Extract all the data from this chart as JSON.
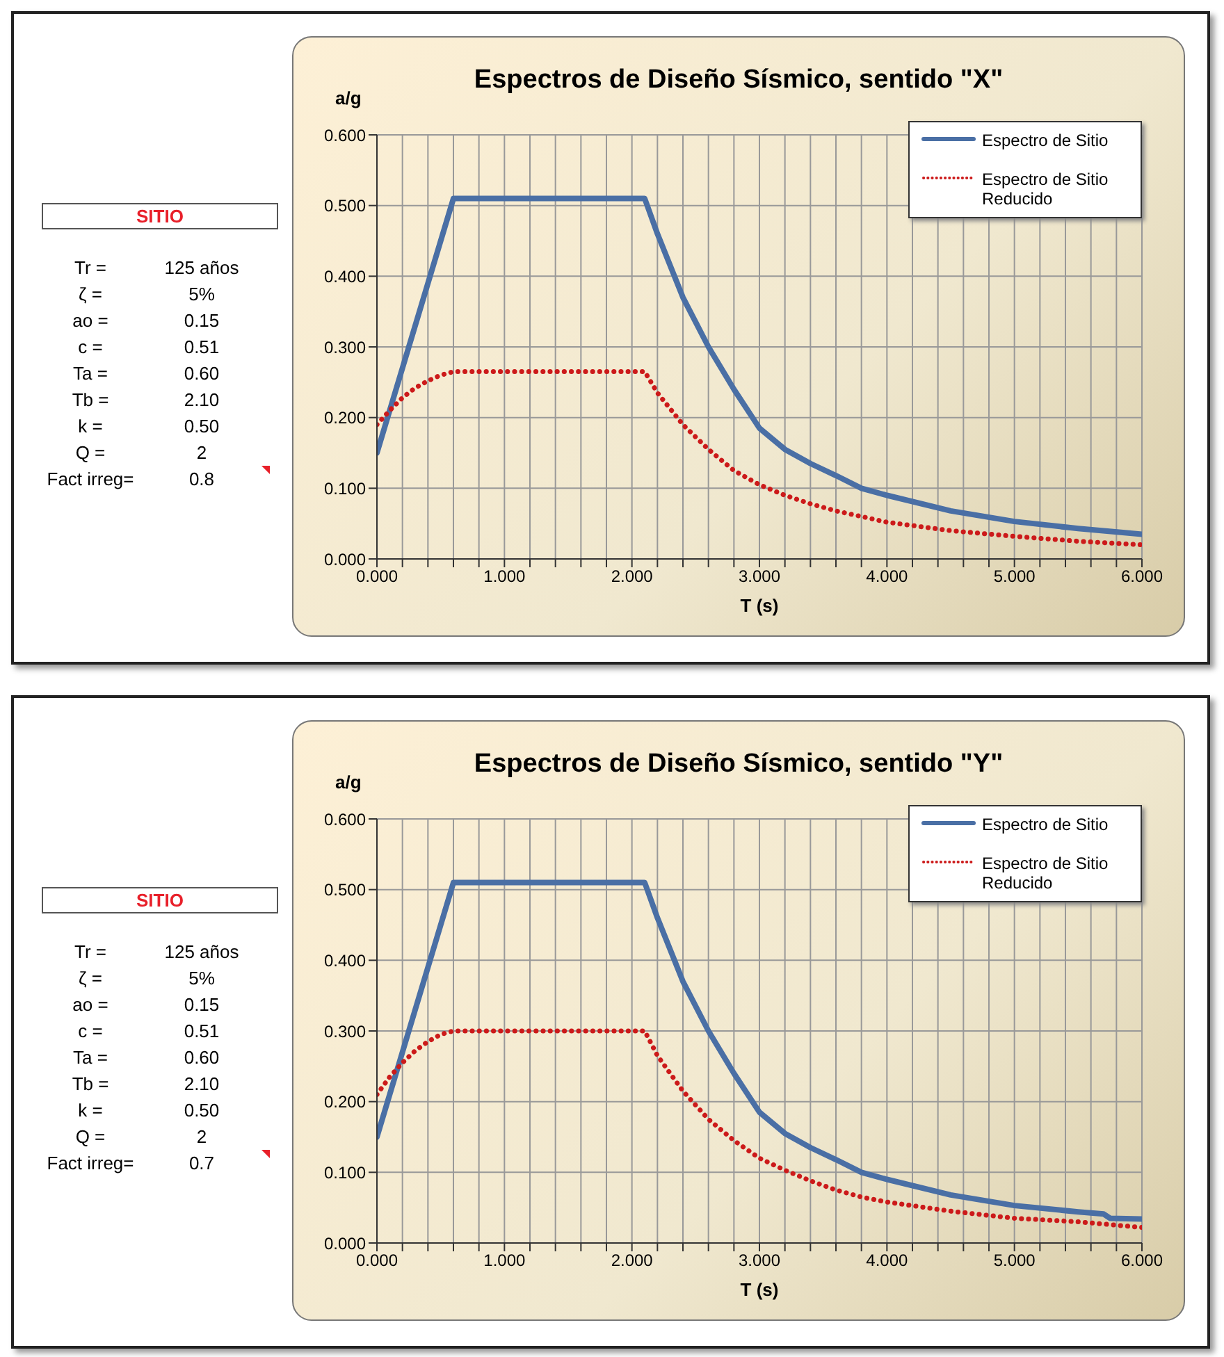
{
  "chart_data": [
    {
      "type": "other",
      "title": "SITIO",
      "annotations": [
        "Tr =",
        "125 años",
        "ζ =",
        "5%",
        "ao =",
        "0.15",
        "c =",
        "0.51",
        "Ta =",
        "0.60",
        "Tb =",
        "2.10",
        "k =",
        "0.50",
        "Q =",
        "2",
        "Fact irreg=",
        "0.8"
      ]
    },
    {
      "type": "line",
      "title": "Espectros de Diseño Sísmico, sentido \"X\"",
      "xlabel": "T (s)",
      "ylabel": "a/g",
      "xlim": [
        0,
        6
      ],
      "ylim": [
        0,
        0.6
      ],
      "xticks": [
        {
          "value": 0,
          "label": "0.000"
        },
        {
          "value": 0.2,
          "label": null
        },
        {
          "value": 0.4,
          "label": null
        },
        {
          "value": 0.6,
          "label": null
        },
        {
          "value": 0.8,
          "label": null
        },
        {
          "value": 1,
          "label": "1.000"
        },
        {
          "value": 1.2,
          "label": null
        },
        {
          "value": 1.4,
          "label": null
        },
        {
          "value": 1.6,
          "label": null
        },
        {
          "value": 1.8,
          "label": null
        },
        {
          "value": 2,
          "label": "2.000"
        },
        {
          "value": 2.2,
          "label": null
        },
        {
          "value": 2.4,
          "label": null
        },
        {
          "value": 2.6,
          "label": null
        },
        {
          "value": 2.8,
          "label": null
        },
        {
          "value": 3,
          "label": "3.000"
        },
        {
          "value": 3.2,
          "label": null
        },
        {
          "value": 3.4,
          "label": null
        },
        {
          "value": 3.6,
          "label": null
        },
        {
          "value": 3.8,
          "label": null
        },
        {
          "value": 4,
          "label": "4.000"
        },
        {
          "value": 4.2,
          "label": null
        },
        {
          "value": 4.4,
          "label": null
        },
        {
          "value": 4.6,
          "label": null
        },
        {
          "value": 4.8,
          "label": null
        },
        {
          "value": 5,
          "label": "5.000"
        },
        {
          "value": 5.2,
          "label": null
        },
        {
          "value": 5.4,
          "label": null
        },
        {
          "value": 5.6,
          "label": null
        },
        {
          "value": 5.8,
          "label": null
        },
        {
          "value": 6,
          "label": "6.000"
        }
      ],
      "yticks": [
        {
          "value": 0,
          "label": "0.000"
        },
        {
          "value": 0.1,
          "label": "0.100"
        },
        {
          "value": 0.2,
          "label": "0.200"
        },
        {
          "value": 0.3,
          "label": "0.300"
        },
        {
          "value": 0.4,
          "label": "0.400"
        },
        {
          "value": 0.5,
          "label": "0.500"
        },
        {
          "value": 0.6,
          "label": "0.600"
        }
      ],
      "grid": true,
      "legend": "top right",
      "marker": "none",
      "series": [
        {
          "name": "Espectro de Sitio",
          "color": "#4a6fa5",
          "line_style": "solid",
          "x": [
            0,
            0.6,
            2.1,
            2.2,
            2.4,
            2.6,
            2.8,
            3.0,
            3.2,
            3.4,
            3.6,
            3.8,
            4.0,
            4.5,
            5.0,
            5.5,
            6.0
          ],
          "values": [
            0.15,
            0.51,
            0.51,
            0.46,
            0.37,
            0.3,
            0.24,
            0.185,
            0.155,
            0.135,
            0.118,
            0.1,
            0.09,
            0.068,
            0.053,
            0.043,
            0.035
          ]
        },
        {
          "name": "Espectro de Sitio Reducido",
          "color": "#cc1a1a",
          "line_style": "dotted",
          "x": [
            0,
            0.1,
            0.2,
            0.3,
            0.4,
            0.5,
            0.6,
            2.1,
            2.2,
            2.4,
            2.6,
            2.8,
            3.0,
            3.2,
            3.4,
            3.6,
            3.8,
            4.0,
            4.5,
            5.0,
            5.5,
            6.0
          ],
          "values": [
            0.19,
            0.21,
            0.228,
            0.242,
            0.252,
            0.26,
            0.265,
            0.265,
            0.235,
            0.19,
            0.155,
            0.125,
            0.105,
            0.09,
            0.078,
            0.068,
            0.06,
            0.052,
            0.04,
            0.032,
            0.025,
            0.02
          ]
        }
      ]
    },
    {
      "type": "other",
      "title": "SITIO",
      "annotations": [
        "Tr =",
        "125 años",
        "ζ =",
        "5%",
        "ao =",
        "0.15",
        "c =",
        "0.51",
        "Ta =",
        "0.60",
        "Tb =",
        "2.10",
        "k =",
        "0.50",
        "Q =",
        "2",
        "Fact irreg=",
        "0.7"
      ]
    },
    {
      "type": "line",
      "title": "Espectros de Diseño Sísmico, sentido \"Y\"",
      "xlabel": "T (s)",
      "ylabel": "a/g",
      "xlim": [
        0,
        6
      ],
      "ylim": [
        0,
        0.6
      ],
      "xticks": [
        {
          "value": 0,
          "label": "0.000"
        },
        {
          "value": 0.2,
          "label": null
        },
        {
          "value": 0.4,
          "label": null
        },
        {
          "value": 0.6,
          "label": null
        },
        {
          "value": 0.8,
          "label": null
        },
        {
          "value": 1,
          "label": "1.000"
        },
        {
          "value": 1.2,
          "label": null
        },
        {
          "value": 1.4,
          "label": null
        },
        {
          "value": 1.6,
          "label": null
        },
        {
          "value": 1.8,
          "label": null
        },
        {
          "value": 2,
          "label": "2.000"
        },
        {
          "value": 2.2,
          "label": null
        },
        {
          "value": 2.4,
          "label": null
        },
        {
          "value": 2.6,
          "label": null
        },
        {
          "value": 2.8,
          "label": null
        },
        {
          "value": 3,
          "label": "3.000"
        },
        {
          "value": 3.2,
          "label": null
        },
        {
          "value": 3.4,
          "label": null
        },
        {
          "value": 3.6,
          "label": null
        },
        {
          "value": 3.8,
          "label": null
        },
        {
          "value": 4,
          "label": "4.000"
        },
        {
          "value": 4.2,
          "label": null
        },
        {
          "value": 4.4,
          "label": null
        },
        {
          "value": 4.6,
          "label": null
        },
        {
          "value": 4.8,
          "label": null
        },
        {
          "value": 5,
          "label": "5.000"
        },
        {
          "value": 5.2,
          "label": null
        },
        {
          "value": 5.4,
          "label": null
        },
        {
          "value": 5.6,
          "label": null
        },
        {
          "value": 5.8,
          "label": null
        },
        {
          "value": 6,
          "label": "6.000"
        }
      ],
      "yticks": [
        {
          "value": 0,
          "label": "0.000"
        },
        {
          "value": 0.1,
          "label": "0.100"
        },
        {
          "value": 0.2,
          "label": "0.200"
        },
        {
          "value": 0.3,
          "label": "0.300"
        },
        {
          "value": 0.4,
          "label": "0.400"
        },
        {
          "value": 0.5,
          "label": "0.500"
        },
        {
          "value": 0.6,
          "label": "0.600"
        }
      ],
      "grid": true,
      "legend": "top right",
      "marker": "none",
      "series": [
        {
          "name": "Espectro de Sitio",
          "color": "#4a6fa5",
          "line_style": "solid",
          "x": [
            0,
            0.6,
            2.1,
            2.2,
            2.4,
            2.6,
            2.8,
            3.0,
            3.2,
            3.4,
            3.6,
            3.8,
            4.0,
            4.5,
            5.0,
            5.5,
            5.7,
            5.75,
            6.0
          ],
          "values": [
            0.15,
            0.51,
            0.51,
            0.46,
            0.37,
            0.3,
            0.24,
            0.185,
            0.155,
            0.135,
            0.118,
            0.1,
            0.09,
            0.068,
            0.053,
            0.044,
            0.041,
            0.035,
            0.034
          ]
        },
        {
          "name": "Espectro de Sitio Reducido",
          "color": "#cc1a1a",
          "line_style": "dotted",
          "x": [
            0,
            0.1,
            0.2,
            0.3,
            0.4,
            0.5,
            0.6,
            2.1,
            2.2,
            2.4,
            2.6,
            2.8,
            3.0,
            3.2,
            3.4,
            3.6,
            3.8,
            4.0,
            4.5,
            5.0,
            5.5,
            6.0
          ],
          "values": [
            0.21,
            0.235,
            0.255,
            0.272,
            0.285,
            0.295,
            0.3,
            0.3,
            0.265,
            0.215,
            0.175,
            0.145,
            0.12,
            0.103,
            0.088,
            0.075,
            0.065,
            0.058,
            0.045,
            0.035,
            0.03,
            0.022
          ]
        }
      ]
    }
  ]
}
